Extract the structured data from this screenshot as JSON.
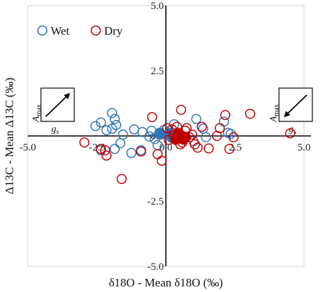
{
  "chart_data": {
    "type": "scatter",
    "title": "",
    "xlabel": "δ18O - Mean δ18O (‰)",
    "ylabel": "Δ13C - Mean Δ13C (‰)",
    "xlim": [
      -5.0,
      5.0
    ],
    "ylim": [
      -5.0,
      5.0
    ],
    "grid": false,
    "legend_position": "top-left",
    "x_ticks": [
      "-5.0",
      "-2.5",
      "0.0",
      "2.5",
      "5.0"
    ],
    "y_ticks": [
      "5.0",
      "2.5",
      "0.0",
      "-2.5",
      "-5.0"
    ],
    "inset_left": {
      "label_y": "A",
      "label_y_sub": "max",
      "label_x": "g",
      "label_x_sub": "s",
      "arrow": "up-right"
    },
    "inset_right": {
      "label_y": "A",
      "label_y_sub": "max",
      "label_x": "g",
      "label_x_sub": "s",
      "arrow": "down-left"
    },
    "series": [
      {
        "name": "Wet",
        "color": "#2e75b6",
        "marker": "open-circle",
        "points": [
          [
            -2.55,
            0.38
          ],
          [
            -2.35,
            0.52
          ],
          [
            -2.15,
            0.22
          ],
          [
            -1.95,
            0.28
          ],
          [
            -1.95,
            0.88
          ],
          [
            -1.85,
            0.65
          ],
          [
            -1.8,
            0.42
          ],
          [
            -1.55,
            0.05
          ],
          [
            -2.35,
            -0.55
          ],
          [
            -1.65,
            -0.28
          ],
          [
            -1.15,
            0.25
          ],
          [
            -0.85,
            0.15
          ],
          [
            -0.6,
            -0.02
          ],
          [
            -0.52,
            0.2
          ],
          [
            -0.4,
            -0.12
          ],
          [
            -0.2,
            0.05
          ],
          [
            -0.08,
            0.22
          ],
          [
            0.15,
            0.12
          ],
          [
            0.3,
            0.45
          ],
          [
            1.1,
            0.65
          ],
          [
            1.35,
            0.28
          ],
          [
            1.45,
            -0.05
          ],
          [
            2.1,
            0.55
          ],
          [
            2.35,
            0.08
          ],
          [
            2.25,
            0.12
          ],
          [
            -1.25,
            -0.65
          ],
          [
            -1.85,
            -0.5
          ],
          [
            -0.3,
            -0.35
          ],
          [
            -0.9,
            -0.55
          ],
          [
            1.0,
            -0.2
          ]
        ],
        "filled_points": [
          [
            -0.22,
            0.1
          ],
          [
            0.12,
            0.05
          ],
          [
            0.22,
            -0.05
          ]
        ]
      },
      {
        "name": "Dry",
        "color": "#c00000",
        "marker": "open-circle",
        "points": [
          [
            -2.95,
            -0.25
          ],
          [
            -2.35,
            -0.5
          ],
          [
            -2.2,
            -0.55
          ],
          [
            -2.15,
            -0.75
          ],
          [
            -1.6,
            -1.65
          ],
          [
            -0.5,
            0.72
          ],
          [
            -0.3,
            -0.7
          ],
          [
            -0.15,
            -0.95
          ],
          [
            0.05,
            0.3
          ],
          [
            0.22,
            0.25
          ],
          [
            0.28,
            0.02
          ],
          [
            0.35,
            -0.15
          ],
          [
            0.45,
            0.12
          ],
          [
            0.52,
            -0.32
          ],
          [
            0.55,
            1.0
          ],
          [
            0.7,
            0.2
          ],
          [
            0.75,
            0.3
          ],
          [
            0.85,
            -0.05
          ],
          [
            0.95,
            0.05
          ],
          [
            1.05,
            -0.32
          ],
          [
            1.55,
            -0.48
          ],
          [
            1.85,
            0.0
          ],
          [
            2.15,
            0.8
          ],
          [
            2.3,
            -0.5
          ],
          [
            2.45,
            -0.05
          ],
          [
            3.05,
            0.85
          ],
          [
            4.5,
            0.1
          ],
          [
            1.95,
            0.3
          ],
          [
            1.3,
            0.35
          ],
          [
            -0.9,
            -0.6
          ],
          [
            0.1,
            -0.15
          ],
          [
            0.4,
            0.35
          ],
          [
            0.6,
            -0.25
          ],
          [
            1.15,
            -0.45
          ]
        ],
        "filled_points": [
          [
            0.38,
            -0.1
          ],
          [
            0.5,
            -0.02
          ],
          [
            0.62,
            -0.12
          ],
          [
            0.7,
            -0.05
          ],
          [
            0.45,
            0.05
          ]
        ]
      }
    ]
  }
}
